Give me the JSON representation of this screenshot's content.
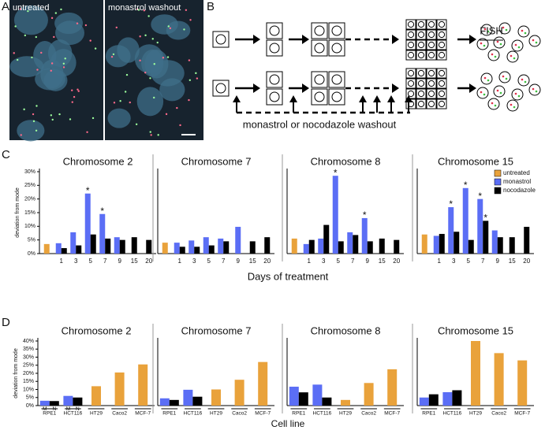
{
  "figure": {
    "panel_labels": [
      "A",
      "B",
      "C",
      "D"
    ]
  },
  "panel_a": {
    "labels": [
      "untreated",
      "monastrol washout"
    ]
  },
  "panel_b": {
    "assay": "FISH",
    "treatment": "monastrol or nocodazole washout"
  },
  "panel_c": {
    "xlabel": "Days of treatment"
  },
  "panel_d": {
    "xlabel": "Cell line"
  },
  "chart_data": [
    {
      "type": "bar",
      "title": "Chromosome 2",
      "categories": [
        null,
        "1",
        "3",
        "5",
        "7",
        "9",
        "15",
        "20"
      ],
      "ylim": [
        0,
        30
      ],
      "yticks": [
        {
          "value": 0,
          "label": "0%"
        },
        {
          "value": 5,
          "label": "5%"
        },
        {
          "value": 10,
          "label": "10%"
        },
        {
          "value": 15,
          "label": "15%"
        },
        {
          "value": 20,
          "label": "20%"
        },
        {
          "value": 25,
          "label": "25%"
        },
        {
          "value": 30,
          "label": "30%"
        }
      ],
      "ylabel": "deviation from mode",
      "series": [
        {
          "color": "#e9a23b",
          "values": [
            3.5,
            null,
            null,
            null,
            null,
            null,
            null,
            null
          ]
        },
        {
          "color": "#5b6ef5",
          "values": [
            null,
            3.8,
            7.8,
            22,
            14.5,
            6,
            null,
            null
          ],
          "annotations": [
            {
              "text": "*",
              "category": "5"
            },
            {
              "text": "*",
              "category": "7"
            }
          ]
        },
        {
          "color": "#000000",
          "values": [
            null,
            2,
            3,
            7,
            5.5,
            5,
            6,
            5
          ]
        }
      ]
    },
    {
      "type": "bar",
      "title": "Chromosome 7",
      "categories": [
        null,
        "1",
        "3",
        "5",
        "7",
        "9",
        "15",
        "20"
      ],
      "ylim": [
        0,
        30
      ],
      "series": [
        {
          "color": "#e9a23b",
          "values": [
            4,
            null,
            null,
            null,
            null,
            null,
            null,
            null
          ]
        },
        {
          "color": "#5b6ef5",
          "values": [
            null,
            4,
            4.8,
            6,
            5.5,
            9.8,
            null,
            null
          ]
        },
        {
          "color": "#000000",
          "values": [
            null,
            2.5,
            2.5,
            3,
            4.5,
            null,
            4.5,
            6
          ]
        }
      ]
    },
    {
      "type": "bar",
      "title": "Chromosome 8",
      "categories": [
        null,
        "1",
        "3",
        "5",
        "7",
        "9",
        "15",
        "20"
      ],
      "ylim": [
        0,
        30
      ],
      "series": [
        {
          "color": "#e9a23b",
          "values": [
            5.5,
            null,
            null,
            null,
            null,
            null,
            null,
            null
          ]
        },
        {
          "color": "#5b6ef5",
          "values": [
            null,
            3.5,
            5.5,
            28.5,
            7.8,
            13,
            null,
            null
          ],
          "annotations": [
            {
              "text": "*",
              "category": "5"
            },
            {
              "text": "*",
              "category": "9"
            }
          ]
        },
        {
          "color": "#000000",
          "values": [
            null,
            5,
            10.5,
            4.5,
            6.8,
            4.5,
            5.5,
            5
          ]
        }
      ]
    },
    {
      "type": "bar",
      "title": "Chromosome 15",
      "categories": [
        null,
        "1",
        "3",
        "5",
        "7",
        "9",
        "15",
        "20"
      ],
      "ylim": [
        0,
        30
      ],
      "legend": "top-right",
      "series": [
        {
          "name": "untreated",
          "color": "#e9a23b",
          "values": [
            7,
            null,
            null,
            null,
            null,
            null,
            null,
            null
          ]
        },
        {
          "name": "monastrol",
          "color": "#5b6ef5",
          "values": [
            null,
            6.5,
            17,
            24,
            20,
            8.5,
            null,
            null
          ],
          "annotations": [
            {
              "text": "*",
              "category": "3"
            },
            {
              "text": "*",
              "category": "5"
            },
            {
              "text": "*",
              "category": "7"
            }
          ]
        },
        {
          "name": "nocodazole",
          "color": "#000000",
          "values": [
            null,
            7.2,
            8,
            5,
            12,
            6,
            6,
            9.8
          ],
          "annotations": [
            {
              "text": "*",
              "category": "7"
            }
          ]
        }
      ]
    },
    {
      "type": "bar",
      "title": "Chromosome 2",
      "categories": [
        "RPE1",
        "HCT116",
        "HT29",
        "Caco2",
        "MCF-7"
      ],
      "ylim": [
        0,
        40
      ],
      "yticks": [
        {
          "value": 0,
          "label": "0%"
        },
        {
          "value": 5,
          "label": "5%"
        },
        {
          "value": 10,
          "label": "10%"
        },
        {
          "value": 15,
          "label": "15%"
        },
        {
          "value": 20,
          "label": "20%"
        },
        {
          "value": 25,
          "label": "25%"
        },
        {
          "value": 30,
          "label": "30%"
        },
        {
          "value": 35,
          "label": "35%"
        },
        {
          "value": 40,
          "label": "40%"
        }
      ],
      "ylabel": "deviation from mode",
      "series": [
        {
          "color": "#e9a23b",
          "values": [
            null,
            null,
            12,
            20.5,
            25.5
          ]
        },
        {
          "color": "#5b6ef5",
          "short_name": "M",
          "values": [
            3,
            6,
            null,
            null,
            null
          ]
        },
        {
          "color": "#000000",
          "short_name": "N",
          "values": [
            2.8,
            5,
            null,
            null,
            null
          ]
        }
      ]
    },
    {
      "type": "bar",
      "title": "Chromosome 7",
      "categories": [
        "RPE1",
        "HCT116",
        "HT29",
        "Caco2",
        "MCF-7"
      ],
      "ylim": [
        0,
        40
      ],
      "series": [
        {
          "color": "#e9a23b",
          "values": [
            null,
            null,
            10,
            16,
            27
          ]
        },
        {
          "color": "#5b6ef5",
          "values": [
            4.5,
            9.8,
            null,
            null,
            null
          ]
        },
        {
          "color": "#000000",
          "values": [
            3.5,
            5.5,
            null,
            null,
            null
          ]
        }
      ]
    },
    {
      "type": "bar",
      "title": "Chromosome 8",
      "categories": [
        "RPE1",
        "HCT116",
        "HT29",
        "Caco2",
        "MCF-7"
      ],
      "ylim": [
        0,
        40
      ],
      "series": [
        {
          "color": "#e9a23b",
          "values": [
            null,
            null,
            3.5,
            14,
            22.5
          ]
        },
        {
          "color": "#5b6ef5",
          "values": [
            11.7,
            13,
            null,
            null,
            null
          ]
        },
        {
          "color": "#000000",
          "values": [
            8.2,
            5,
            null,
            null,
            null
          ]
        }
      ]
    },
    {
      "type": "bar",
      "title": "Chromosome 15",
      "categories": [
        "RPE1",
        "HCT116",
        "HT29",
        "Caco2",
        "MCF-7"
      ],
      "ylim": [
        0,
        40
      ],
      "series": [
        {
          "color": "#e9a23b",
          "values": [
            null,
            null,
            40,
            32.5,
            28
          ]
        },
        {
          "color": "#5b6ef5",
          "values": [
            5,
            8.3,
            null,
            null,
            null
          ]
        },
        {
          "color": "#000000",
          "values": [
            7,
            9.5,
            null,
            null,
            null
          ]
        }
      ]
    }
  ]
}
